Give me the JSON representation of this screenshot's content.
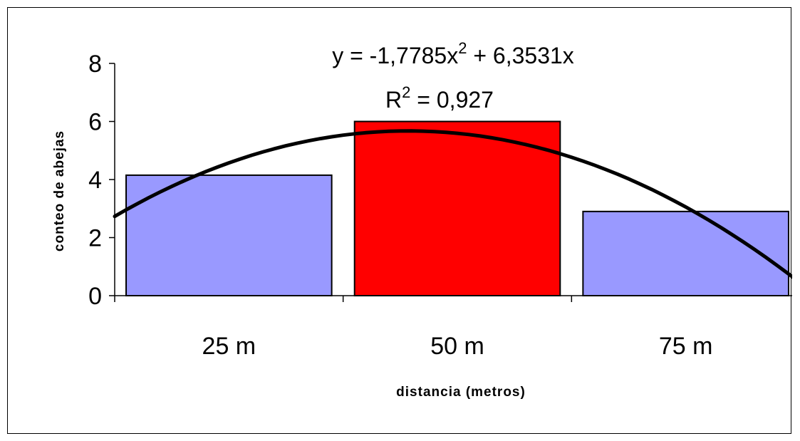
{
  "chart_data": {
    "type": "bar",
    "categories": [
      "25 m",
      "50 m",
      "75 m"
    ],
    "values": [
      4.15,
      6.0,
      2.9
    ],
    "bar_colors": [
      "#9999ff",
      "#ff0000",
      "#9999ff"
    ],
    "xlabel": "distancia (metros)",
    "ylabel": "conteo de abejas",
    "ylim": [
      0,
      8
    ],
    "yticks": [
      0,
      2,
      4,
      6,
      8
    ],
    "grid": false,
    "trendline": {
      "type": "polynomial",
      "a": -1.7785,
      "b": 6.3531,
      "c": 0,
      "x_range": [
        0.5,
        3.5
      ],
      "color": "#000000",
      "equation": {
        "lhs": "y = -1,7785x",
        "exp": "2",
        "rhs": " + 6,3531x"
      },
      "r_squared": {
        "lhs": "R",
        "exp": "2",
        "rhs": " = 0,927"
      }
    }
  }
}
